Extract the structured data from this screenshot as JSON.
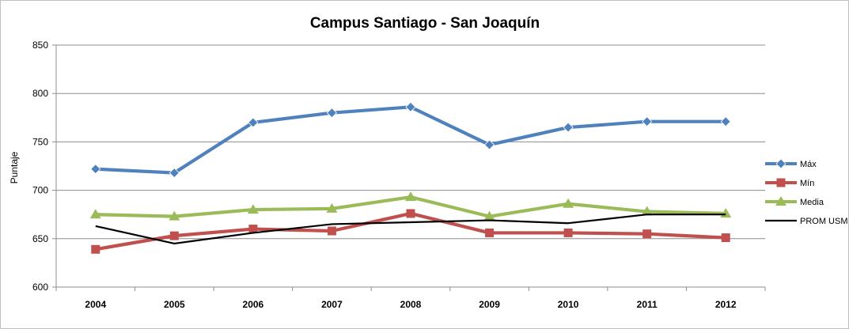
{
  "chart_data": {
    "type": "line",
    "title": "Campus Santiago - San Joaquín",
    "xlabel": "",
    "ylabel": "Puntaje",
    "categories": [
      "2004",
      "2005",
      "2006",
      "2007",
      "2008",
      "2009",
      "2010",
      "2011",
      "2012"
    ],
    "ylim": [
      600,
      850
    ],
    "yticks": [
      600,
      650,
      700,
      750,
      800,
      850
    ],
    "grid": true,
    "legend": "right",
    "series": [
      {
        "name": "Máx",
        "values": [
          722,
          718,
          770,
          780,
          786,
          747,
          765,
          771,
          771
        ],
        "color": "#4f81bd",
        "marker": "diamond"
      },
      {
        "name": "Mín",
        "values": [
          639,
          653,
          660,
          658,
          676,
          656,
          656,
          655,
          651
        ],
        "color": "#c0504d",
        "marker": "square"
      },
      {
        "name": "Media",
        "values": [
          675,
          673,
          680,
          681,
          693,
          673,
          686,
          678,
          676
        ],
        "color": "#9bbb59",
        "marker": "triangle"
      },
      {
        "name": "PROM USM",
        "values": [
          663,
          645,
          656,
          665,
          667,
          669,
          666,
          675,
          675
        ],
        "color": "#000000",
        "marker": "none"
      }
    ]
  }
}
